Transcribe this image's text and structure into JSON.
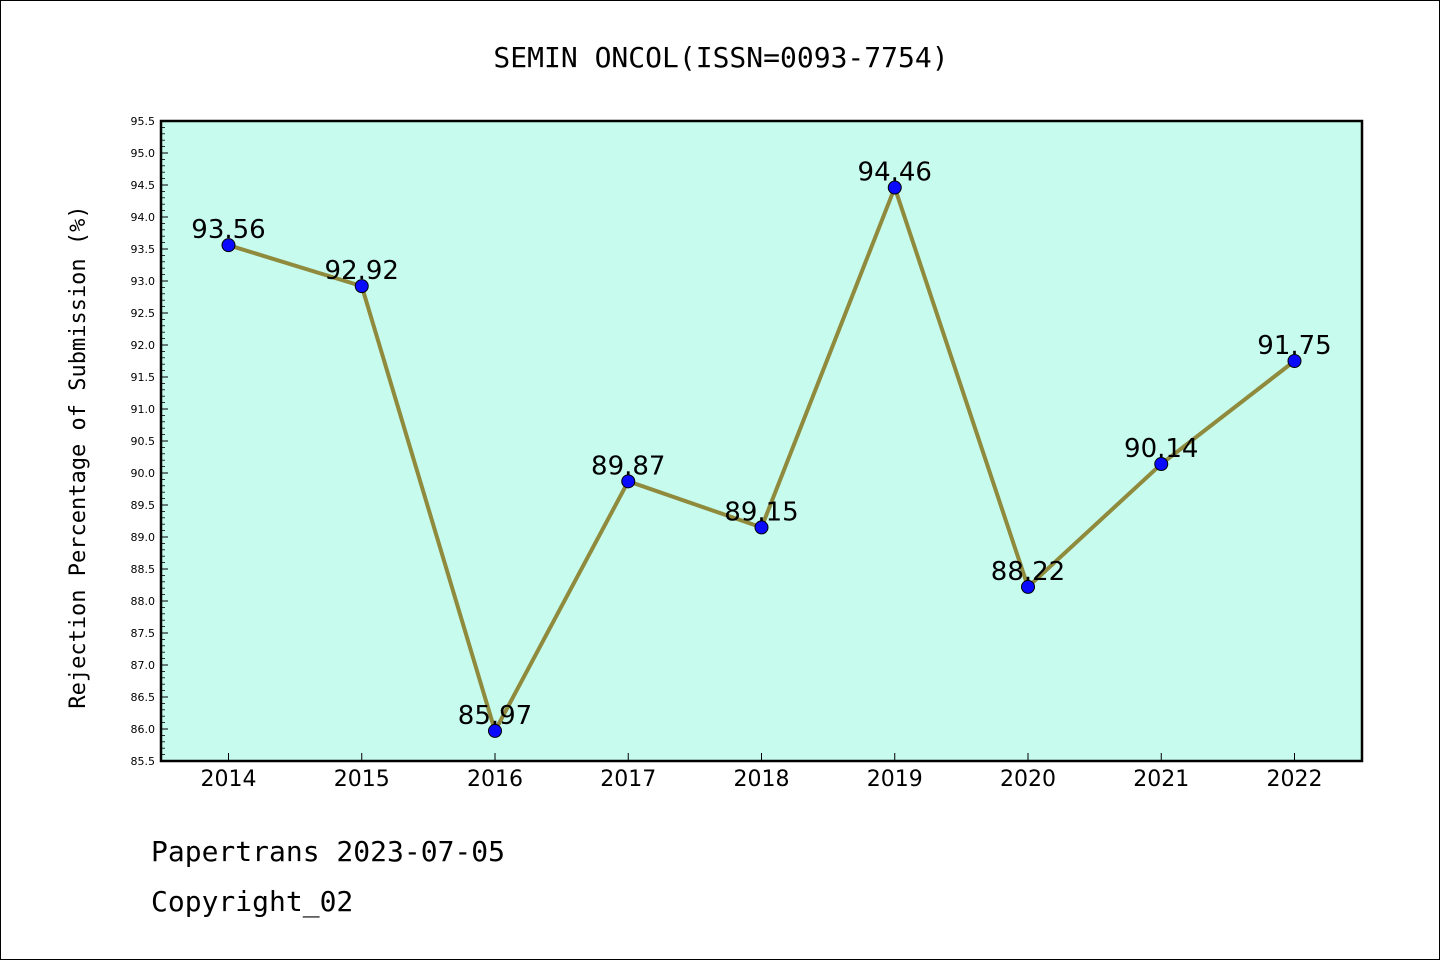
{
  "chart_data": {
    "type": "line",
    "title": "SEMIN ONCOL(ISSN=0093-7754)",
    "xlabel": "",
    "ylabel": "Rejection Percentage of Submission (%)",
    "categories": [
      "2014",
      "2015",
      "2016",
      "2017",
      "2018",
      "2019",
      "2020",
      "2021",
      "2022"
    ],
    "series": [
      {
        "values": [
          93.56,
          92.92,
          85.97,
          89.87,
          89.15,
          94.46,
          88.22,
          90.14,
          91.75
        ]
      }
    ],
    "data_labels": [
      "93.56",
      "92.92",
      "85.97",
      "89.87",
      "89.15",
      "94.46",
      "88.22",
      "90.14",
      "91.75"
    ],
    "ylim": [
      85.5,
      95.5
    ],
    "yticks": [
      "85.5",
      "86.0",
      "86.5",
      "87.0",
      "87.5",
      "88.0",
      "88.5",
      "89.0",
      "89.5",
      "90.0",
      "90.5",
      "91.0",
      "91.5",
      "92.0",
      "92.5",
      "93.0",
      "93.5",
      "94.0",
      "94.5",
      "95.0",
      "95.5"
    ],
    "grid": false,
    "colors": {
      "plot_background": "#c6fbee",
      "line": "#8f8a3c",
      "marker": "#0a0aff"
    }
  },
  "footer": {
    "line1": "Papertrans 2023-07-05",
    "line2": "Copyright_02"
  }
}
